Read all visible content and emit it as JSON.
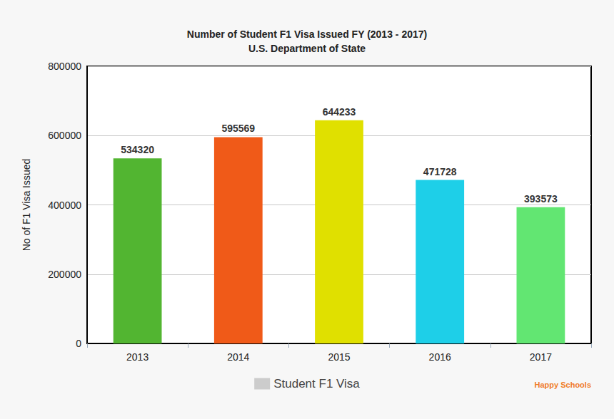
{
  "chart_data": {
    "type": "bar",
    "title": "Number of Student F1 Visa Issued FY (2013 - 2017)",
    "subtitle": "U.S. Department of State",
    "y_label": "No of F1 Visa Issued",
    "categories": [
      "2013",
      "2014",
      "2015",
      "2016",
      "2017"
    ],
    "series": [
      {
        "name": "Student F1 Visa",
        "color": "#cccccc",
        "values": [
          534320,
          595569,
          644233,
          471728,
          393573
        ],
        "colors": [
          "#52b531",
          "#f05a18",
          "#e0e000",
          "#1ecfe8",
          "#62e672"
        ]
      }
    ],
    "ylim": [
      0,
      800000
    ],
    "yticks": [
      0,
      200000,
      400000,
      600000,
      800000
    ],
    "grid": true,
    "legend": "bottom",
    "data_labels": true,
    "annotations": [
      "Happy Schools"
    ]
  }
}
